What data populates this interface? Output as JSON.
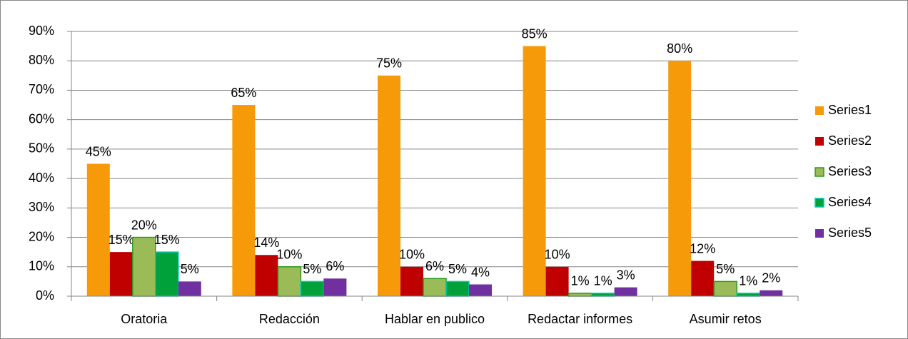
{
  "chart_data": {
    "type": "bar",
    "categories": [
      "Oratoria",
      "Redacción",
      "Hablar en publico",
      "Redactar informes",
      "Asumir retos"
    ],
    "series": [
      {
        "name": "Series1",
        "color": "#f79a0a",
        "values": [
          45,
          65,
          75,
          85,
          80
        ],
        "value_labels": [
          "45%",
          "65%",
          "75%",
          "85%",
          "80%"
        ]
      },
      {
        "name": "Series2",
        "color": "#c00000",
        "values": [
          15,
          14,
          10,
          10,
          12
        ],
        "value_labels": [
          "15%",
          "14%",
          "10%",
          "10%",
          "12%"
        ]
      },
      {
        "name": "Series3",
        "color": "#9bbb59",
        "edgecolor": "#2e9a1e",
        "values": [
          20,
          10,
          6,
          1,
          5
        ],
        "value_labels": [
          "20%",
          "10%",
          "6%",
          "1%",
          "5%"
        ]
      },
      {
        "name": "Series4",
        "color": "#00a03a",
        "edgecolor": "#00c8b4",
        "values": [
          15,
          5,
          5,
          1,
          1
        ],
        "value_labels": [
          "15%",
          "5%",
          "5%",
          "1%",
          "1%"
        ]
      },
      {
        "name": "Series5",
        "color": "#7030a0",
        "values": [
          5,
          6,
          4,
          3,
          2
        ],
        "value_labels": [
          "5%",
          "6%",
          "4%",
          "3%",
          "2%"
        ]
      }
    ],
    "ylim": [
      0,
      90
    ],
    "yticks": [
      {
        "value": 0,
        "label": "0%"
      },
      {
        "value": 10,
        "label": "10%"
      },
      {
        "value": 20,
        "label": "20%"
      },
      {
        "value": 30,
        "label": "30%"
      },
      {
        "value": 40,
        "label": "40%"
      },
      {
        "value": 50,
        "label": "50%"
      },
      {
        "value": 60,
        "label": "60%"
      },
      {
        "value": 70,
        "label": "70%"
      },
      {
        "value": 80,
        "label": "80%"
      },
      {
        "value": 90,
        "label": "90%"
      }
    ],
    "grid": true,
    "legend": "right"
  }
}
